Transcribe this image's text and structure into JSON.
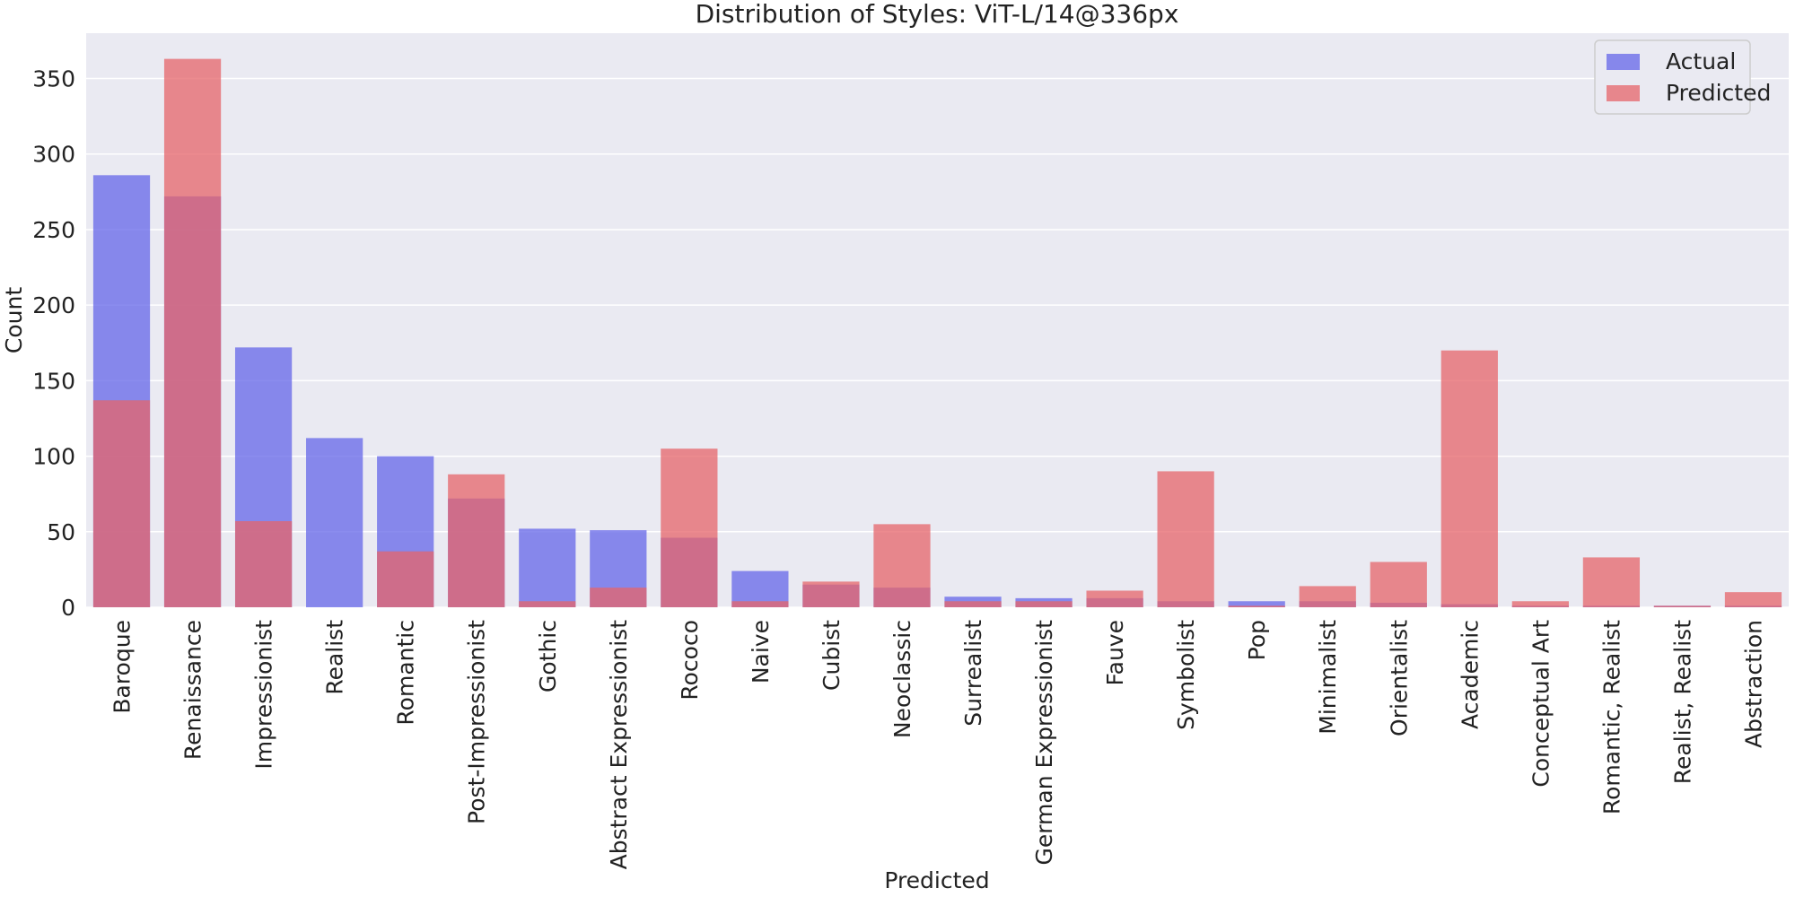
{
  "chart_data": {
    "type": "bar",
    "title": "Distribution of Styles: ViT-L/14@336px",
    "xlabel": "Predicted",
    "ylabel": "Count",
    "ylim": [
      0,
      380
    ],
    "yticks": [
      0,
      50,
      100,
      150,
      200,
      250,
      300,
      350
    ],
    "grid": true,
    "legend_position": "top-right",
    "categories": [
      "Baroque",
      "Renaissance",
      "Impressionist",
      "Realist",
      "Romantic",
      "Post-Impressionist",
      "Gothic",
      "Abstract Expressionist",
      "Rococo",
      "Naive",
      "Cubist",
      "Neoclassic",
      "Surrealist",
      "German Expressionist",
      "Fauve",
      "Symbolist",
      "Pop",
      "Minimalist",
      "Orientalist",
      "Academic",
      "Conceptual Art",
      "Romantic, Realist",
      "Realist, Realist",
      "Abstraction"
    ],
    "series": [
      {
        "name": "Actual",
        "color": "#6466e8",
        "values": [
          286,
          272,
          172,
          112,
          100,
          72,
          52,
          51,
          46,
          24,
          15,
          13,
          7,
          6,
          6,
          4,
          4,
          4,
          3,
          2,
          1,
          1,
          1,
          1
        ]
      },
      {
        "name": "Predicted",
        "color": "#e6646a",
        "values": [
          137,
          363,
          57,
          0,
          37,
          88,
          4,
          13,
          105,
          4,
          17,
          55,
          4,
          4,
          11,
          90,
          1,
          14,
          30,
          170,
          4,
          33,
          1,
          10
        ]
      }
    ]
  }
}
